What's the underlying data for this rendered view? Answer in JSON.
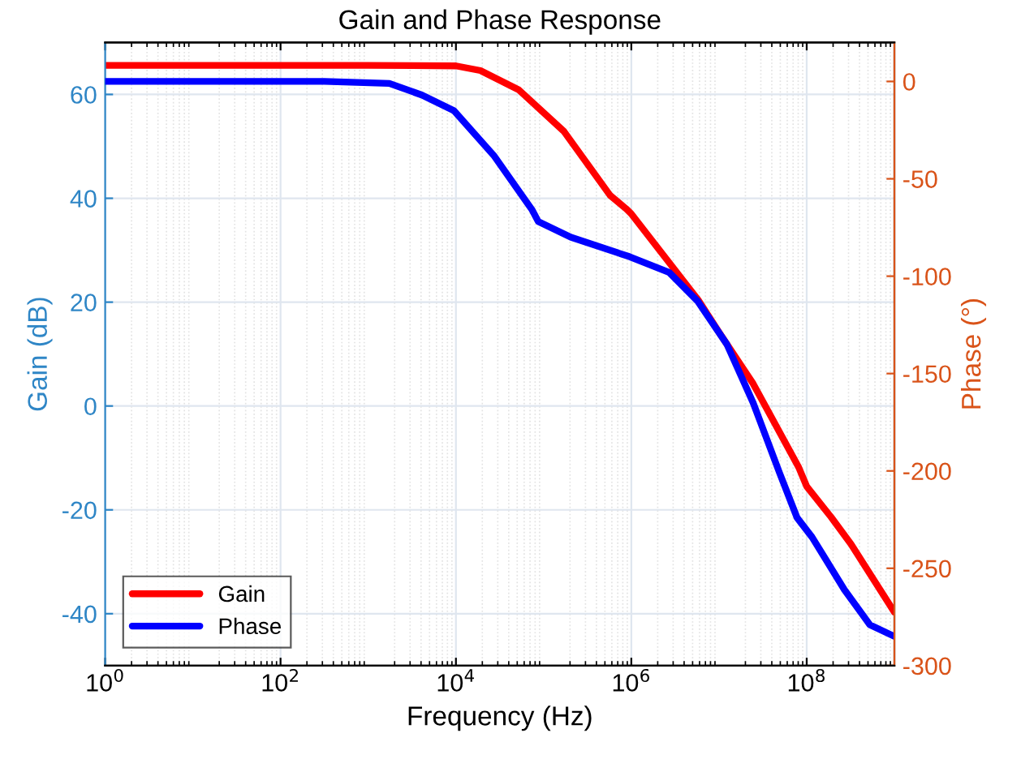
{
  "chart_data": {
    "type": "line",
    "title": "Gain and Phase Response",
    "xlabel": "Frequency (Hz)",
    "ylabel": "Gain (dB)",
    "y2label": "Phase (°)",
    "log": "x",
    "xlim": [
      1,
      1000000000
    ],
    "xticks": [
      {
        "value": 1,
        "label": "10$^{0}$"
      },
      {
        "value": 100,
        "label": "10$^{2}$"
      },
      {
        "value": 10000,
        "label": "10$^{4}$"
      },
      {
        "value": 1000000,
        "label": "10$^{6}$"
      },
      {
        "value": 100000000,
        "label": "10$^{8}$"
      }
    ],
    "ylim": [
      -50,
      70
    ],
    "yticks": [
      -40,
      -20,
      0,
      20,
      40,
      60
    ],
    "y2lim": [
      -300,
      20
    ],
    "y2ticks": [
      -300,
      -250,
      -200,
      -150,
      -100,
      -50,
      0
    ],
    "grid": true,
    "legend": "bottom left",
    "line_style": "solid",
    "marker": "none",
    "series": [
      {
        "name": "Gain",
        "color": "#ff0000",
        "x": [
          1,
          100,
          1000,
          10000,
          19000,
          52000,
          170000,
          570000,
          870000,
          1000000,
          5800000,
          10000000,
          24500000,
          81000000,
          100000000,
          190000000,
          320000000,
          1000000000
        ],
        "values": [
          65.6,
          65.6,
          65.6,
          65.5,
          64.6,
          60.9,
          52.9,
          40.6,
          38,
          37,
          20.4,
          14.2,
          4.3,
          -11.8,
          -15.5,
          -21.4,
          -26.6,
          -39.7
        ]
      },
      {
        "name": "Phase",
        "color": "#0000ff",
        "axis": "y2",
        "x": [
          1,
          100,
          316,
          1740,
          4100,
          9500,
          27000,
          74000,
          87000,
          204000,
          955000,
          2690000,
          5750000,
          12300000,
          24500000,
          49000000,
          77600000,
          115000000,
          269000000,
          525000000,
          1000000000
        ],
        "values": [
          0,
          0,
          0,
          -1,
          -7,
          -15,
          -38,
          -66,
          -72,
          -80,
          -90,
          -98,
          -113,
          -135,
          -165,
          -201,
          -224,
          -234,
          -261,
          -279,
          -285
        ]
      }
    ]
  }
}
